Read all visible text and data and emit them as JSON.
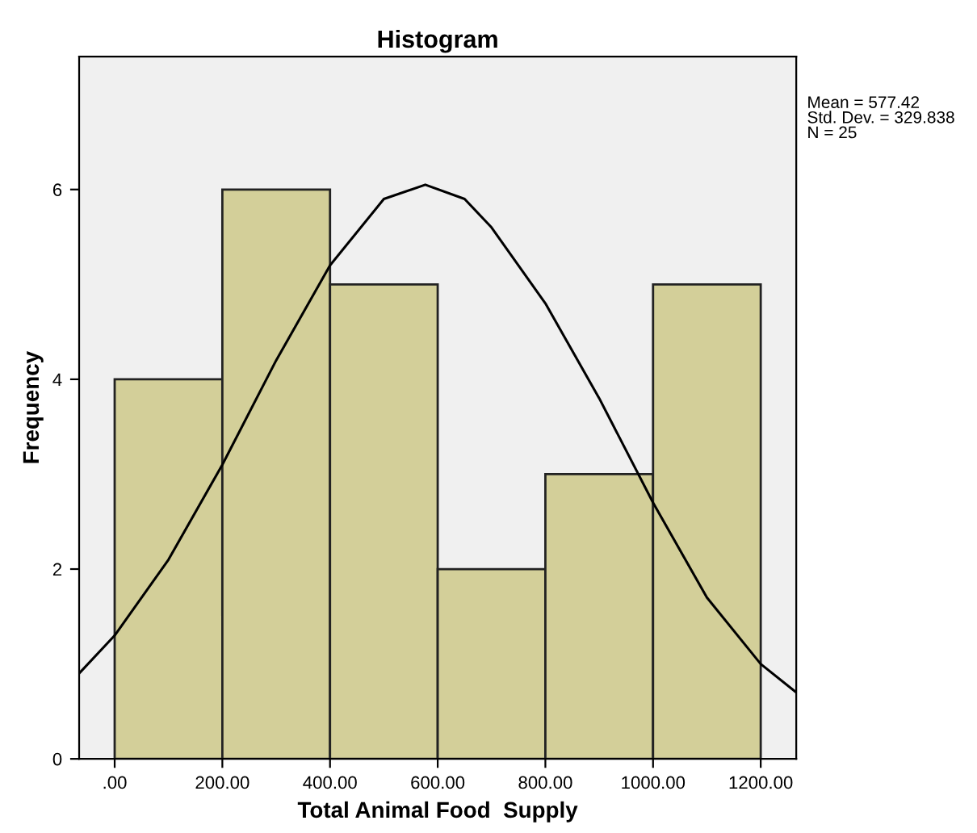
{
  "chart_data": {
    "type": "histogram",
    "title": "Histogram",
    "xlabel": "Total Animal Food  Supply",
    "ylabel": "Frequency",
    "bins": [
      0,
      200,
      400,
      600,
      800,
      1000,
      1200
    ],
    "values": [
      4,
      6,
      5,
      2,
      3,
      5
    ],
    "color": "#d3cf99",
    "series": [
      {
        "type": "line",
        "color": "#000000",
        "x": [
          -66,
          0,
          100,
          200,
          300,
          400,
          500,
          577,
          650,
          700,
          800,
          900,
          1000,
          1100,
          1200,
          1266
        ],
        "values": [
          0.9,
          1.3,
          2.1,
          3.1,
          4.2,
          5.2,
          5.9,
          6.05,
          5.9,
          5.6,
          4.8,
          3.8,
          2.7,
          1.7,
          1.0,
          0.7
        ]
      }
    ],
    "xlim": [
      -66,
      1266
    ],
    "ylim": [
      0,
      7.4
    ],
    "xticks": [
      {
        "value": 0,
        "label": ".00"
      },
      {
        "value": 200,
        "label": "200.00"
      },
      {
        "value": 400,
        "label": "400.00"
      },
      {
        "value": 600,
        "label": "600.00"
      },
      {
        "value": 800,
        "label": "800.00"
      },
      {
        "value": 1000,
        "label": "1000.00"
      },
      {
        "value": 1200,
        "label": "1200.00"
      }
    ],
    "yticks": [
      0,
      2,
      4,
      6
    ],
    "grid": false,
    "legend": false,
    "annotations": [
      "Mean = 577.42\nStd. Dev. = 329.838\nN = 25"
    ]
  }
}
